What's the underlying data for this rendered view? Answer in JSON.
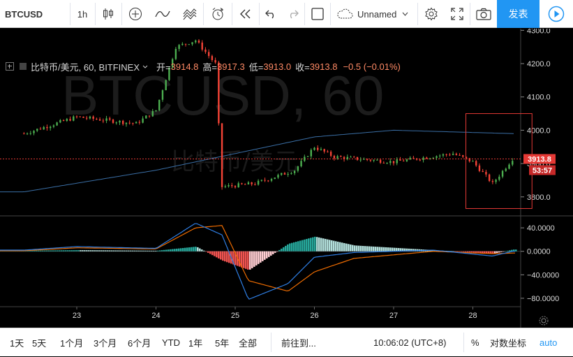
{
  "toolbar": {
    "symbol": "BTCUSD",
    "interval": "1h",
    "layout_name": "Unnamed",
    "publish_label": "发表",
    "icons": [
      "candles-icon",
      "indicators-plus-icon",
      "line-chart-icon",
      "templates-icon",
      "alert-clock-icon",
      "replay-icon",
      "undo-icon",
      "redo-icon",
      "layout-square-icon",
      "cloud-icon",
      "settings-gear-icon",
      "fullscreen-icon",
      "camera-icon",
      "play-icon"
    ]
  },
  "legend": {
    "title": "比特币/美元, 60, BITFINEX",
    "open_label": "开=",
    "open": "3914.8",
    "high_label": "高=",
    "high": "3917.3",
    "low_label": "低=",
    "low": "3913.0",
    "close_label": "收=",
    "close": "3913.8",
    "change": "−0.5 (−0.01%)"
  },
  "watermark": {
    "line1": "BTCUSD, 60",
    "line2": "比特币/美元"
  },
  "price_axis": {
    "ticks": [
      "4300.0",
      "4200.0",
      "4100.0",
      "4000.0",
      "3900.0",
      "3800.0"
    ],
    "ticks_values": [
      4300,
      4200,
      4100,
      4000,
      3900,
      3800
    ],
    "last_price": "3913.8",
    "countdown": "53:57"
  },
  "macd_axis": {
    "ticks": [
      "40.0000",
      "0.0000",
      "−40.0000",
      "−80.0000"
    ],
    "ticks_values": [
      40,
      0,
      -40,
      -80
    ]
  },
  "time_axis": {
    "labels": [
      "23",
      "24",
      "25",
      "26",
      "27",
      "28"
    ]
  },
  "bottom": {
    "ranges": [
      "1天",
      "5天",
      "1个月",
      "3个月",
      "6个月",
      "YTD",
      "1年",
      "5年",
      "全部"
    ],
    "goto": "前往到...",
    "clock": "10:06:02 (UTC+8)",
    "percent": "%",
    "log": "对数坐标",
    "auto": "auto"
  },
  "colors": {
    "up": "#4caf50",
    "down": "#f44336",
    "ma": "#3a6ea5",
    "macd": "#2f7fe5",
    "signal": "#ef6c00",
    "hist_up_strong": "#26a69a",
    "hist_up_weak": "#b2dfdb",
    "hist_down_strong": "#ef5350",
    "hist_down_weak": "#ffcdd2",
    "highlight": "#e53935"
  },
  "chart_data": {
    "type": "candlestick",
    "price_range": [
      3745,
      4305
    ],
    "x_days": [
      "23",
      "24",
      "25",
      "26",
      "27",
      "28"
    ],
    "ohlc_keypoints": [
      {
        "t": "22 08:00",
        "price": 3990
      },
      {
        "t": "23 00:00",
        "price": 4040
      },
      {
        "t": "23 18:00",
        "price": 4020
      },
      {
        "t": "24 00:00",
        "price": 4060
      },
      {
        "t": "24 06:00",
        "price": 4250
      },
      {
        "t": "24 12:00",
        "price": 4270
      },
      {
        "t": "24 18:00",
        "price": 4200
      },
      {
        "t": "24 20:00",
        "price": 3830
      },
      {
        "t": "25 06:00",
        "price": 3840
      },
      {
        "t": "25 18:00",
        "price": 3880
      },
      {
        "t": "26 00:00",
        "price": 3950
      },
      {
        "t": "26 06:00",
        "price": 3920
      },
      {
        "t": "27 00:00",
        "price": 3905
      },
      {
        "t": "27 18:00",
        "price": 3930
      },
      {
        "t": "28 00:00",
        "price": 3905
      },
      {
        "t": "28 06:00",
        "price": 3840
      },
      {
        "t": "28 12:00",
        "price": 3914
      }
    ],
    "moving_average_keypoints": [
      {
        "t": "22 08:00",
        "price": 3815
      },
      {
        "t": "24 00:00",
        "price": 3880
      },
      {
        "t": "25 00:00",
        "price": 3930
      },
      {
        "t": "26 00:00",
        "price": 3980
      },
      {
        "t": "27 00:00",
        "price": 4000
      },
      {
        "t": "28 12:00",
        "price": 3990
      }
    ],
    "macd_range": [
      -92,
      58
    ],
    "macd_keypoints": [
      {
        "t": "22 08:00",
        "macd": 2,
        "signal": 1
      },
      {
        "t": "23 00:00",
        "macd": 8,
        "signal": 6
      },
      {
        "t": "24 00:00",
        "macd": 5,
        "signal": 4
      },
      {
        "t": "24 12:00",
        "macd": 48,
        "signal": 40
      },
      {
        "t": "24 20:00",
        "macd": 28,
        "signal": 44
      },
      {
        "t": "25 04:00",
        "macd": -82,
        "signal": -50
      },
      {
        "t": "25 16:00",
        "macd": -55,
        "signal": -68
      },
      {
        "t": "26 00:00",
        "macd": -10,
        "signal": -35
      },
      {
        "t": "26 12:00",
        "macd": -2,
        "signal": -12
      },
      {
        "t": "27 12:00",
        "macd": 2,
        "signal": 0
      },
      {
        "t": "28 06:00",
        "macd": -8,
        "signal": -4
      },
      {
        "t": "28 12:00",
        "macd": 0,
        "signal": -3
      }
    ]
  }
}
